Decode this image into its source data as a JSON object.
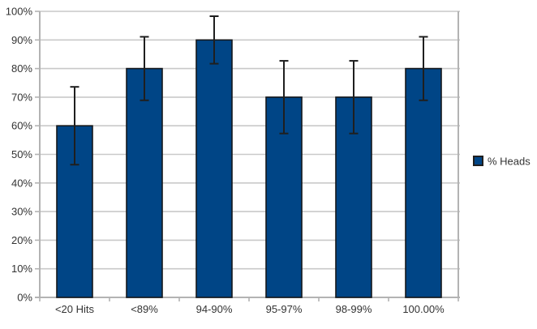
{
  "chart_data": {
    "type": "bar",
    "title": "",
    "xlabel": "",
    "ylabel": "",
    "categories": [
      "<20 Hits",
      "<89%",
      "94-90%",
      "95-97%",
      "98-99%",
      "100.00%"
    ],
    "series": [
      {
        "name": "% Heads",
        "values": [
          60,
          80,
          90,
          70,
          70,
          80
        ],
        "error_low": [
          46.4,
          68.9,
          81.7,
          57.3,
          57.3,
          68.9
        ],
        "error_high": [
          73.6,
          91.1,
          98.3,
          82.7,
          82.7,
          91.1
        ]
      }
    ],
    "ylim": [
      0,
      100
    ],
    "y_tick_step": 10,
    "y_tick_labels": [
      "0%",
      "10%",
      "20%",
      "30%",
      "40%",
      "50%",
      "60%",
      "70%",
      "80%",
      "90%",
      "100%"
    ],
    "grid": true,
    "legend_position": "right",
    "colors": {
      "bar_fill": "#004586",
      "bar_border": "#15181c",
      "error_bar": "#1f1f1f",
      "gridline": "#c9c9c9",
      "axis": "#b3b3b3",
      "text": "#333333",
      "background": "#ffffff"
    }
  }
}
